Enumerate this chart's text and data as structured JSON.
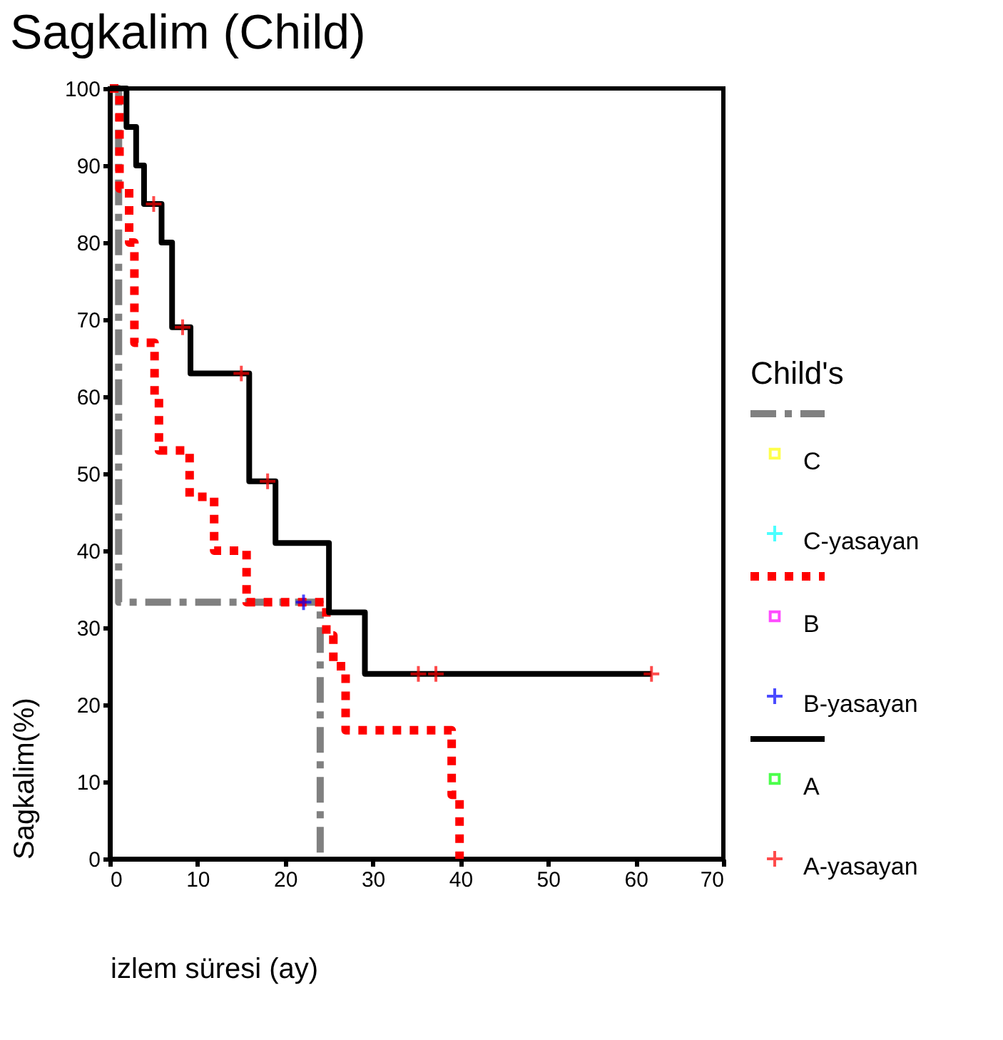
{
  "chart_data": {
    "type": "step",
    "title": "Sagkalim (Child)",
    "xlabel": "izlem süresi (ay)",
    "ylabel": "Sagkalim(%)",
    "legend_title": "Child's",
    "xlim": [
      0,
      70
    ],
    "xticks": [
      0,
      10,
      20,
      30,
      40,
      50,
      60,
      70
    ],
    "ylim": [
      0,
      100
    ],
    "yticks": [
      0,
      10,
      20,
      30,
      40,
      50,
      60,
      70,
      80,
      90,
      100
    ],
    "grid": false,
    "legend": "right",
    "series": [
      {
        "type": "step",
        "color": "#808080",
        "line_style": "dashed",
        "marker": "none",
        "x": [
          0,
          1,
          24
        ],
        "values": [
          100,
          33.3,
          0
        ]
      },
      {
        "type": "scatter",
        "name": "C",
        "color": "#ffff00",
        "marker": "square"
      },
      {
        "type": "scatter",
        "name": "C-yasayan",
        "color": "#00ffff",
        "marker": "cross"
      },
      {
        "type": "step",
        "color": "#ff0000",
        "line_style": "dotted",
        "marker": "none",
        "x": [
          0,
          1.1,
          2.2,
          2.8,
          5.1,
          5.6,
          9.1,
          11.9,
          15.6,
          24.7,
          25.5,
          26.9,
          39,
          39.9
        ],
        "values": [
          100,
          87,
          80,
          67,
          60,
          53,
          47,
          40,
          33.3,
          29,
          25,
          16.7,
          8.3,
          0
        ]
      },
      {
        "type": "scatter",
        "name": "B",
        "color": "#ff00ff",
        "marker": "square"
      },
      {
        "type": "scatter",
        "name": "B-yasayan",
        "color": "#0000ff",
        "marker": "cross",
        "x": [
          22.1
        ],
        "values": [
          33.3
        ]
      },
      {
        "type": "step",
        "color": "#000000",
        "line_style": "solid",
        "marker": "none",
        "x": [
          0,
          1.9,
          3,
          3.9,
          5.9,
          7.1,
          9.2,
          15.9,
          18.9,
          25,
          29.1,
          61.8
        ],
        "values": [
          100,
          95,
          90,
          85,
          80,
          69,
          63,
          49,
          41,
          32,
          24,
          24
        ]
      },
      {
        "type": "scatter",
        "name": "A",
        "color": "#00ff00",
        "marker": "square"
      },
      {
        "type": "scatter",
        "name": "A-yasayan",
        "color": "#ff0000",
        "marker": "cross",
        "x": [
          5,
          8.3,
          15,
          18,
          35.2,
          37.2,
          61.8
        ],
        "values": [
          85,
          69,
          63,
          49,
          24,
          24,
          24
        ]
      }
    ]
  }
}
